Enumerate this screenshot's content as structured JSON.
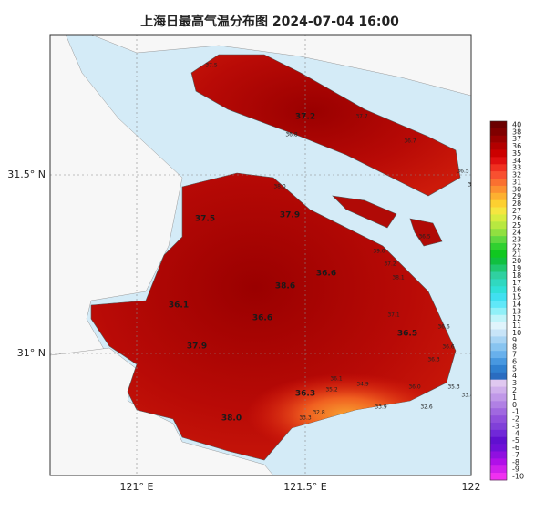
{
  "title": "上海日最高气温分布图 2024-07-04 16:00",
  "axes": {
    "lat_labels": [
      "31.5° N",
      "31° N"
    ],
    "lon_labels": [
      "121° E",
      "121.5° E",
      "122"
    ]
  },
  "colorbar": {
    "labels": [
      "40",
      "38",
      "37",
      "36",
      "35",
      "34",
      "33",
      "32",
      "31",
      "30",
      "29",
      "28",
      "27",
      "26",
      "25",
      "24",
      "23",
      "22",
      "21",
      "20",
      "19",
      "18",
      "17",
      "16",
      "15",
      "14",
      "13",
      "12",
      "11",
      "10",
      "9",
      "8",
      "7",
      "6",
      "5",
      "4",
      "3",
      "2",
      "1",
      "0",
      "-1",
      "-2",
      "-3",
      "-4",
      "-5",
      "-6",
      "-7",
      "-8",
      "-9",
      "-10"
    ],
    "colors": [
      "#6b0000",
      "#800000",
      "#990000",
      "#b30000",
      "#cc0000",
      "#e01010",
      "#f03020",
      "#f85030",
      "#fa7030",
      "#fc9030",
      "#fdb030",
      "#fdd030",
      "#f5e640",
      "#d8ec40",
      "#b8e840",
      "#90e040",
      "#60d840",
      "#30d030",
      "#10c820",
      "#10c040",
      "#20c870",
      "#30d0a0",
      "#30d8c0",
      "#30e0d8",
      "#40e0f0",
      "#60e8f8",
      "#90f0f8",
      "#c0f4fa",
      "#e0f4fc",
      "#c8e4f8",
      "#a8d4f4",
      "#88c4f0",
      "#68b0ec",
      "#4898e0",
      "#3080d0",
      "#2a6cc0",
      "#e0c8f0",
      "#d0b0ec",
      "#c098e8",
      "#b080e4",
      "#a068e0",
      "#9050dc",
      "#8040d8",
      "#7028d8",
      "#6010d0",
      "#7010d8",
      "#9010e0",
      "#b010e8",
      "#d020ec",
      "#f030f0"
    ]
  },
  "stations": [
    "37.5",
    "37.2",
    "37.7",
    "36.8",
    "36.7",
    "36.5",
    "33.6",
    "38.0",
    "37.5",
    "37.9",
    "36.6",
    "38.6",
    "36.1",
    "36.6",
    "37.9",
    "36.5",
    "36.3",
    "38.0",
    "36.6",
    "36.6",
    "36.3",
    "35.3",
    "33.4",
    "32.6",
    "33.9",
    "32.8",
    "33.3",
    "34.9",
    "35.2",
    "36.1",
    "36.0",
    "36.5",
    "37.1",
    "38.1",
    "39.0",
    "37.2"
  ]
}
